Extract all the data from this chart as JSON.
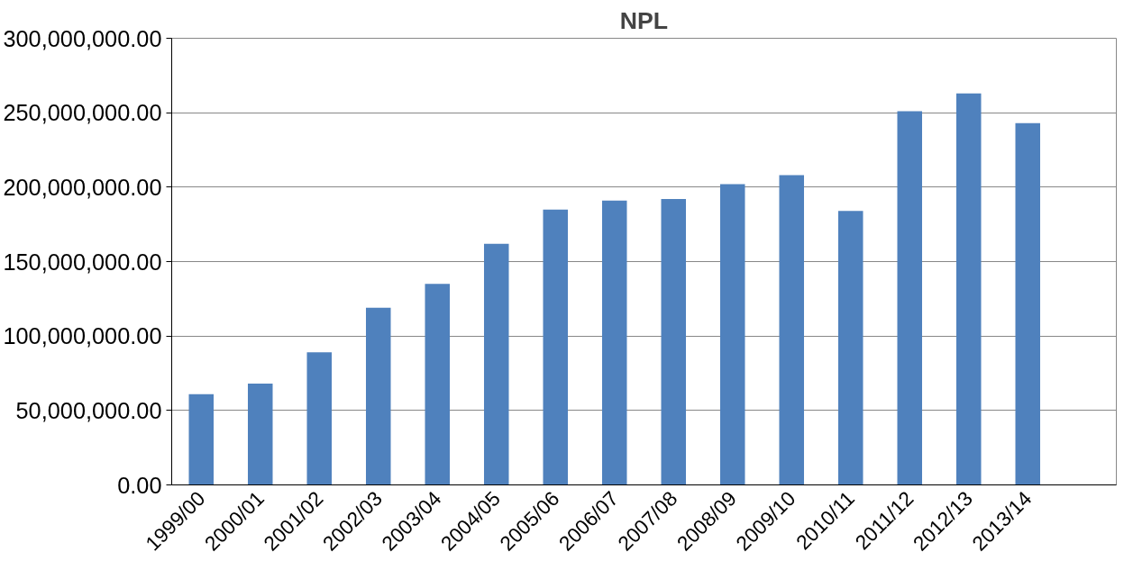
{
  "chart_data": {
    "type": "bar",
    "title": "NPL",
    "categories": [
      "1999/00",
      "2000/01",
      "2001/02",
      "2002/03",
      "2003/04",
      "2004/05",
      "2005/06",
      "2006/07",
      "2007/08",
      "2008/09",
      "2009/10",
      "2010/11",
      "2011/12",
      "2012/13",
      "2013/14",
      null
    ],
    "values": [
      61000000,
      68000000,
      89000000,
      119000000,
      135000000,
      162000000,
      185000000,
      191000000,
      192000000,
      202000000,
      208000000,
      184000000,
      251000000,
      263000000,
      243000000,
      null
    ],
    "color": "#4f81bd",
    "ylim": [
      0,
      300000000
    ],
    "yticks": [
      {
        "value": 0,
        "label": "0.00"
      },
      {
        "value": 50000000,
        "label": "50,000,000.00"
      },
      {
        "value": 100000000,
        "label": "100,000,000.00"
      },
      {
        "value": 150000000,
        "label": "150,000,000.00"
      },
      {
        "value": 200000000,
        "label": "200,000,000.00"
      },
      {
        "value": 250000000,
        "label": "250,000,000.00"
      },
      {
        "value": 300000000,
        "label": "300,000,000.00"
      }
    ],
    "grid": "y"
  }
}
